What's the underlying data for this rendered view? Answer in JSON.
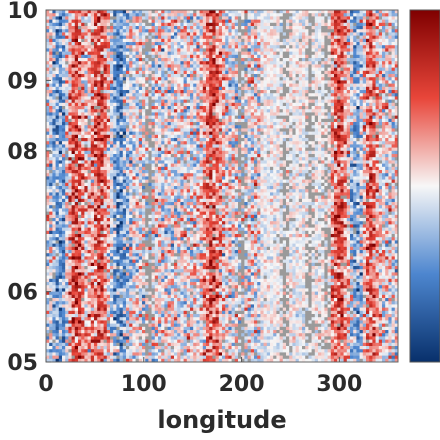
{
  "chart_data": {
    "type": "heatmap",
    "title": "",
    "xlabel": "longitude",
    "ylabel": "",
    "xlim": [
      0,
      360
    ],
    "x_ticks": [
      0,
      100,
      200,
      300
    ],
    "x_tick_labels": [
      "0",
      "100",
      "200",
      "300"
    ],
    "ylim": [
      5,
      10
    ],
    "y_ticks": [
      5,
      6,
      8,
      9,
      10
    ],
    "y_tick_labels": [
      "05",
      "06",
      "08",
      "09",
      "10"
    ],
    "colormap": "diverging blue-white-red",
    "colors": {
      "negative_extreme": "#08306b",
      "negative": "#3a78c8",
      "neutral": "#f7f7f7",
      "positive": "#e33a2f",
      "positive_extreme": "#8b0000",
      "missing": "#9a9a9a"
    },
    "colorbar": {
      "orientation": "vertical",
      "tick_labels": []
    },
    "pattern": {
      "strong_positive_bands_longitude": [
        30,
        55,
        170,
        300,
        330
      ],
      "strong_negative_bands_longitude": [
        15,
        75,
        320
      ],
      "missing_data_bands_longitude": [
        105,
        200,
        245,
        270,
        287
      ],
      "quiet_region_longitude": [
        220,
        290
      ]
    }
  }
}
